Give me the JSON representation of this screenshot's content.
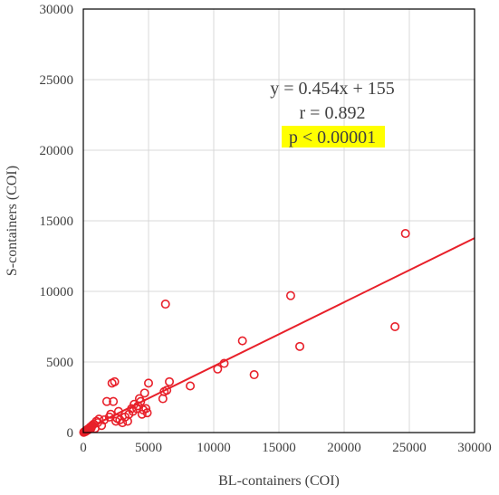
{
  "chart_data": {
    "type": "scatter",
    "title": "",
    "xlabel": "BL-containers (COI)",
    "ylabel": "S-containers (COI)",
    "xlim": [
      0,
      30000
    ],
    "ylim": [
      0,
      30000
    ],
    "x_ticks": [
      "0",
      "5000",
      "10000",
      "15000",
      "20000",
      "25000",
      "30000"
    ],
    "y_ticks": [
      "0",
      "5000",
      "10000",
      "15000",
      "20000",
      "25000",
      "30000"
    ],
    "grid": true,
    "colors": {
      "points": "#e8202a",
      "trendline": "#e8202a",
      "highlight": "#ffff00",
      "grid": "#d9d9d9"
    },
    "points": [
      [
        30,
        20
      ],
      [
        60,
        40
      ],
      [
        90,
        50
      ],
      [
        120,
        80
      ],
      [
        150,
        60
      ],
      [
        180,
        100
      ],
      [
        200,
        150
      ],
      [
        250,
        120
      ],
      [
        300,
        180
      ],
      [
        350,
        250
      ],
      [
        400,
        200
      ],
      [
        450,
        300
      ],
      [
        500,
        350
      ],
      [
        550,
        400
      ],
      [
        600,
        320
      ],
      [
        650,
        450
      ],
      [
        700,
        520
      ],
      [
        800,
        600
      ],
      [
        900,
        300
      ],
      [
        1000,
        800
      ],
      [
        1100,
        700
      ],
      [
        1200,
        950
      ],
      [
        1400,
        500
      ],
      [
        1600,
        900
      ],
      [
        1800,
        2200
      ],
      [
        2000,
        1100
      ],
      [
        2100,
        1300
      ],
      [
        2200,
        3500
      ],
      [
        2300,
        2200
      ],
      [
        2400,
        3600
      ],
      [
        2500,
        800
      ],
      [
        2600,
        1000
      ],
      [
        2700,
        1500
      ],
      [
        2800,
        900
      ],
      [
        3000,
        700
      ],
      [
        3200,
        1100
      ],
      [
        3400,
        800
      ],
      [
        3500,
        1300
      ],
      [
        3700,
        1700
      ],
      [
        3800,
        1500
      ],
      [
        3900,
        2000
      ],
      [
        4100,
        1700
      ],
      [
        4200,
        1900
      ],
      [
        4300,
        2400
      ],
      [
        4400,
        2200
      ],
      [
        4500,
        1300
      ],
      [
        4600,
        1600
      ],
      [
        4700,
        2800
      ],
      [
        4800,
        1700
      ],
      [
        4900,
        1400
      ],
      [
        5000,
        3500
      ],
      [
        6100,
        2400
      ],
      [
        6200,
        2900
      ],
      [
        6300,
        9100
      ],
      [
        6400,
        3000
      ],
      [
        6600,
        3600
      ],
      [
        8200,
        3300
      ],
      [
        10300,
        4500
      ],
      [
        10800,
        4900
      ],
      [
        12200,
        6500
      ],
      [
        13100,
        4100
      ],
      [
        15900,
        9700
      ],
      [
        16600,
        6100
      ],
      [
        23900,
        7500
      ],
      [
        24700,
        14100
      ]
    ],
    "trendline": {
      "slope": 0.454,
      "intercept": 155,
      "x_range": [
        0,
        30000
      ]
    },
    "annotations": {
      "equation": "y = 0.454x + 155",
      "r": "r = 0.892",
      "p": "p < 0.00001"
    }
  }
}
